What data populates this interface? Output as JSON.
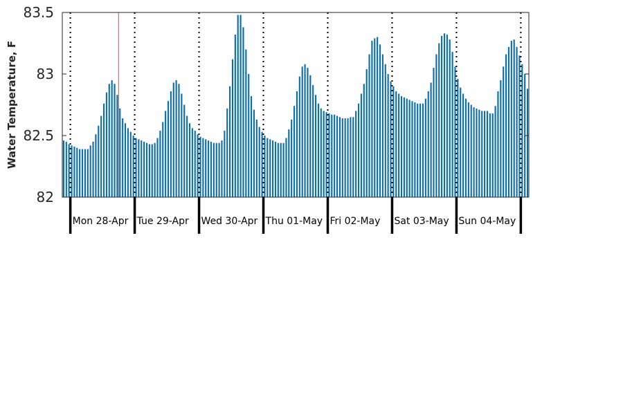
{
  "colors": {
    "bar": "#0b6eac",
    "current_marker": "#ff5555",
    "axis": "#262626",
    "day_separator": "#000000"
  },
  "chart_data": {
    "type": "bar",
    "title": "",
    "xlabel": "",
    "ylabel": "Water Temperature, F",
    "ylim": [
      82,
      83.5
    ],
    "yticks": [
      82,
      82.5,
      83,
      83.5
    ],
    "ytick_labels": [
      "82",
      "82.5",
      "83",
      "83.5"
    ],
    "grid": false,
    "legend": "none",
    "day_labels": [
      "Mon 28-Apr",
      "Tue 29-Apr",
      "Wed 30-Apr",
      "Thu 01-May",
      "Fri 02-May",
      "Sat 03-May",
      "Sun 04-May"
    ],
    "x_start": "2025-04-27 21:00",
    "x_step_hours": 1,
    "current_time": "2025-04-28 18:00",
    "values": [
      82.46,
      82.45,
      82.43,
      82.42,
      82.41,
      82.4,
      82.39,
      82.39,
      82.39,
      82.39,
      82.42,
      82.45,
      82.51,
      82.58,
      82.66,
      82.76,
      82.85,
      82.92,
      82.95,
      82.92,
      82.83,
      82.72,
      82.64,
      82.6,
      82.56,
      82.53,
      82.5,
      82.48,
      82.47,
      82.46,
      82.45,
      82.44,
      82.43,
      82.43,
      82.44,
      82.48,
      82.54,
      82.61,
      82.7,
      82.78,
      82.86,
      82.93,
      82.95,
      82.92,
      82.84,
      82.75,
      82.66,
      82.6,
      82.56,
      82.54,
      82.51,
      82.49,
      82.48,
      82.47,
      82.46,
      82.45,
      82.44,
      82.44,
      82.44,
      82.46,
      82.54,
      82.72,
      82.9,
      83.12,
      83.32,
      83.48,
      83.48,
      83.38,
      83.2,
      83.0,
      82.82,
      82.71,
      82.63,
      82.57,
      82.53,
      82.5,
      82.48,
      82.47,
      82.46,
      82.45,
      82.44,
      82.44,
      82.44,
      82.48,
      82.55,
      82.63,
      82.74,
      82.86,
      82.98,
      83.06,
      83.08,
      83.05,
      82.99,
      82.91,
      82.83,
      82.76,
      82.72,
      82.7,
      82.69,
      82.68,
      82.67,
      82.67,
      82.66,
      82.65,
      82.64,
      82.64,
      82.64,
      82.65,
      82.65,
      82.7,
      82.76,
      82.84,
      82.92,
      83.04,
      83.16,
      83.27,
      83.29,
      83.3,
      83.24,
      83.16,
      83.08,
      83.0,
      82.94,
      82.9,
      82.86,
      82.84,
      82.82,
      82.81,
      82.8,
      82.79,
      82.78,
      82.77,
      82.76,
      82.76,
      82.76,
      82.8,
      82.86,
      82.93,
      83.05,
      83.16,
      83.25,
      83.31,
      83.33,
      83.32,
      83.28,
      83.18,
      83.06,
      82.96,
      82.89,
      82.84,
      82.8,
      82.77,
      82.75,
      82.73,
      82.72,
      82.71,
      82.7,
      82.7,
      82.7,
      82.68,
      82.68,
      82.74,
      82.86,
      82.95,
      83.06,
      83.16,
      83.22,
      83.27,
      83.28,
      83.22,
      83.15,
      83.08,
      83.0,
      82.88
    ]
  }
}
